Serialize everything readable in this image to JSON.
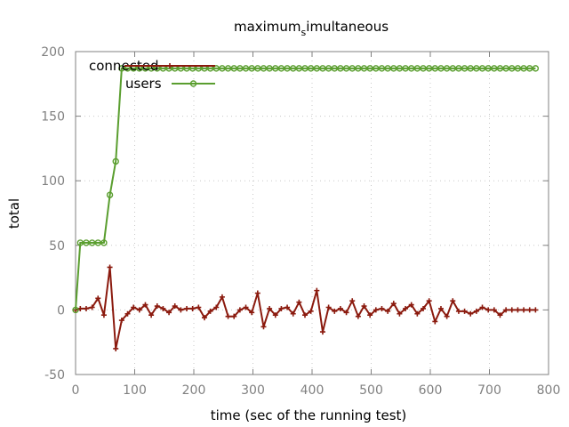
{
  "chart_data": {
    "type": "line",
    "title_main": "maximum",
    "title_sub": "s",
    "title_rest": "imultaneous",
    "xlabel": "time (sec of the running test)",
    "ylabel": "total",
    "xlim": [
      0,
      800
    ],
    "ylim": [
      -50,
      200
    ],
    "xticks": [
      0,
      100,
      200,
      300,
      400,
      500,
      600,
      700,
      800
    ],
    "yticks": [
      -50,
      0,
      50,
      100,
      150,
      200
    ],
    "grid": true,
    "legend_position": "top-left",
    "series": [
      {
        "name": "connected",
        "color": "#8b1a0e",
        "marker": "plus",
        "x": [
          0,
          8,
          18,
          28,
          38,
          48,
          58,
          68,
          78,
          88,
          98,
          108,
          118,
          128,
          138,
          148,
          158,
          168,
          178,
          188,
          198,
          208,
          218,
          228,
          238,
          248,
          258,
          268,
          278,
          288,
          298,
          308,
          318,
          328,
          338,
          348,
          358,
          368,
          378,
          388,
          398,
          408,
          418,
          428,
          438,
          448,
          458,
          468,
          478,
          488,
          498,
          508,
          518,
          528,
          538,
          548,
          558,
          568,
          578,
          588,
          598,
          608,
          618,
          628,
          638,
          648,
          658,
          668,
          678,
          688,
          698,
          708,
          718,
          728,
          738,
          748,
          758,
          768,
          778
        ],
        "y": [
          0,
          1,
          1,
          2,
          9,
          -4,
          33,
          -30,
          -8,
          -3,
          2,
          0,
          4,
          -4,
          3,
          1,
          -2,
          3,
          0,
          1,
          1,
          2,
          -6,
          -1,
          2,
          10,
          -5,
          -5,
          0,
          2,
          -2,
          13,
          -13,
          1,
          -4,
          1,
          2,
          -3,
          6,
          -4,
          -1,
          15,
          -17,
          2,
          -1,
          1,
          -2,
          7,
          -5,
          3,
          -4,
          0,
          1,
          -1,
          5,
          -3,
          1,
          4,
          -3,
          1,
          7,
          -9,
          1,
          -5,
          7,
          -1,
          -1,
          -3,
          -1,
          2,
          0,
          0,
          -4,
          0,
          0,
          0,
          0,
          0,
          0
        ]
      },
      {
        "name": "users",
        "color": "#5a9e2f",
        "marker": "circle",
        "x": [
          0,
          8,
          18,
          28,
          38,
          48,
          58,
          68,
          78,
          88,
          98,
          108,
          118,
          128,
          138,
          148,
          158,
          168,
          178,
          188,
          198,
          208,
          218,
          228,
          238,
          248,
          258,
          268,
          278,
          288,
          298,
          308,
          318,
          328,
          338,
          348,
          358,
          368,
          378,
          388,
          398,
          408,
          418,
          428,
          438,
          448,
          458,
          468,
          478,
          488,
          498,
          508,
          518,
          528,
          538,
          548,
          558,
          568,
          578,
          588,
          598,
          608,
          618,
          628,
          638,
          648,
          658,
          668,
          678,
          688,
          698,
          708,
          718,
          728,
          738,
          748,
          758,
          768,
          778
        ],
        "y": [
          0,
          52,
          52,
          52,
          52,
          52,
          89,
          115,
          187,
          187,
          187,
          187,
          187,
          187,
          187,
          187,
          187,
          187,
          187,
          187,
          187,
          187,
          187,
          187,
          187,
          187,
          187,
          187,
          187,
          187,
          187,
          187,
          187,
          187,
          187,
          187,
          187,
          187,
          187,
          187,
          187,
          187,
          187,
          187,
          187,
          187,
          187,
          187,
          187,
          187,
          187,
          187,
          187,
          187,
          187,
          187,
          187,
          187,
          187,
          187,
          187,
          187,
          187,
          187,
          187,
          187,
          187,
          187,
          187,
          187,
          187,
          187,
          187,
          187,
          187,
          187,
          187,
          187,
          187
        ]
      }
    ]
  }
}
